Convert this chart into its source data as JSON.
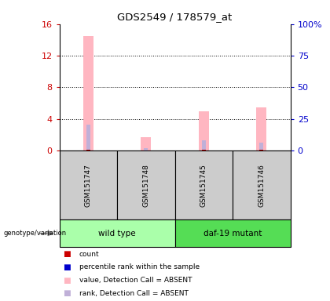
{
  "title": "GDS2549 / 178579_at",
  "samples": [
    "GSM151747",
    "GSM151748",
    "GSM151745",
    "GSM151746"
  ],
  "pink_bars": [
    14.5,
    1.7,
    5.0,
    5.5
  ],
  "blue_bars": [
    3.3,
    0.3,
    1.3,
    1.0
  ],
  "red_bars": [
    0.05,
    0.0,
    0.05,
    0.05
  ],
  "left_ylim": [
    0,
    16
  ],
  "left_yticks": [
    0,
    4,
    8,
    12,
    16
  ],
  "right_yticks": [
    0,
    4,
    8,
    12,
    16
  ],
  "right_yticklabels": [
    "0",
    "25",
    "50",
    "75",
    "100%"
  ],
  "left_color": "#CC0000",
  "right_color": "#0000CC",
  "background_color": "#ffffff",
  "sample_bg_color": "#cccccc",
  "wildtype_color": "#aaffaa",
  "mutant_color": "#55dd55",
  "grid_yticks": [
    4,
    8,
    12
  ],
  "legend_items": [
    {
      "label": "count",
      "color": "#CC0000"
    },
    {
      "label": "percentile rank within the sample",
      "color": "#0000CC"
    },
    {
      "label": "value, Detection Call = ABSENT",
      "color": "#FFB6C1"
    },
    {
      "label": "rank, Detection Call = ABSENT",
      "color": "#C0B0D8"
    }
  ]
}
